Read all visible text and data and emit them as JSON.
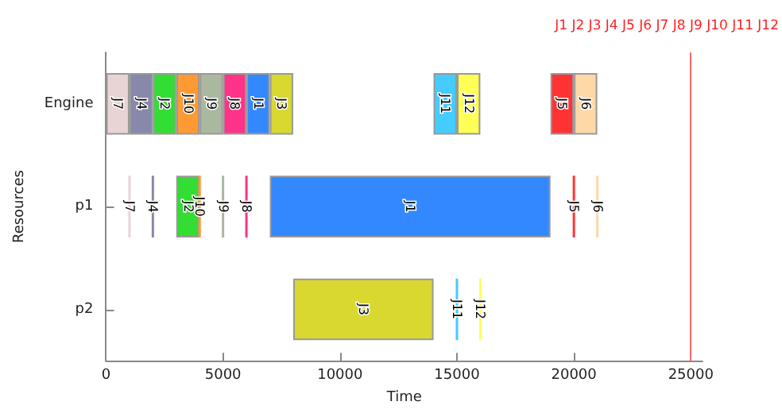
{
  "chart_data": {
    "type": "bar",
    "orientation": "horizontal",
    "stacked": false,
    "categories": [
      "Engine",
      "p1",
      "p2"
    ],
    "xlabel": "Time",
    "ylabel": "Resources",
    "xlim": [
      0,
      25500
    ],
    "xticks": [
      0,
      5000,
      10000,
      15000,
      20000,
      25000
    ],
    "series": [
      {
        "name": "J1",
        "color": "#3388ff",
        "base": [
          6000,
          7000,
          null
        ],
        "values": [
          1000,
          12000,
          null
        ]
      },
      {
        "name": "J2",
        "color": "#33dd33",
        "base": [
          2000,
          3000,
          null
        ],
        "values": [
          1000,
          1000,
          null
        ]
      },
      {
        "name": "J3",
        "color": "#d8d830",
        "base": [
          7000,
          null,
          8000
        ],
        "values": [
          1000,
          null,
          6000
        ]
      },
      {
        "name": "J4",
        "color": "#8888aa",
        "base": [
          1000,
          2000,
          null
        ],
        "values": [
          1000,
          0,
          null
        ]
      },
      {
        "name": "J5",
        "color": "#ff3333",
        "base": [
          19000,
          20000,
          null
        ],
        "values": [
          1000,
          0,
          null
        ]
      },
      {
        "name": "J6",
        "color": "#ffd8a8",
        "base": [
          20000,
          21000,
          null
        ],
        "values": [
          1000,
          0,
          null
        ]
      },
      {
        "name": "J7",
        "color": "#e8d4d4",
        "base": [
          0,
          1000,
          null
        ],
        "values": [
          1000,
          0,
          null
        ]
      },
      {
        "name": "J8",
        "color": "#ff3388",
        "base": [
          5000,
          6000,
          null
        ],
        "values": [
          1000,
          0,
          null
        ]
      },
      {
        "name": "J9",
        "color": "#aab8a0",
        "base": [
          4000,
          5000,
          null
        ],
        "values": [
          1000,
          0,
          null
        ]
      },
      {
        "name": "J10",
        "color": "#ff9933",
        "base": [
          3000,
          4000,
          null
        ],
        "values": [
          1000,
          0,
          null
        ]
      },
      {
        "name": "J11",
        "color": "#44ccff",
        "base": [
          14000,
          null,
          15000
        ],
        "values": [
          1000,
          null,
          0
        ]
      },
      {
        "name": "J12",
        "color": "#ffff55",
        "base": [
          15000,
          null,
          16000
        ],
        "values": [
          1000,
          null,
          0
        ]
      }
    ],
    "ref_lines": [
      {
        "axis": "x",
        "value": 25000,
        "label": null,
        "color": "#ff6666"
      }
    ],
    "annotations": [
      "J1 J2 J3 J4 J5 J6 J7 J8 J9 J10 J11 J12"
    ],
    "grid": false,
    "legend": false
  }
}
